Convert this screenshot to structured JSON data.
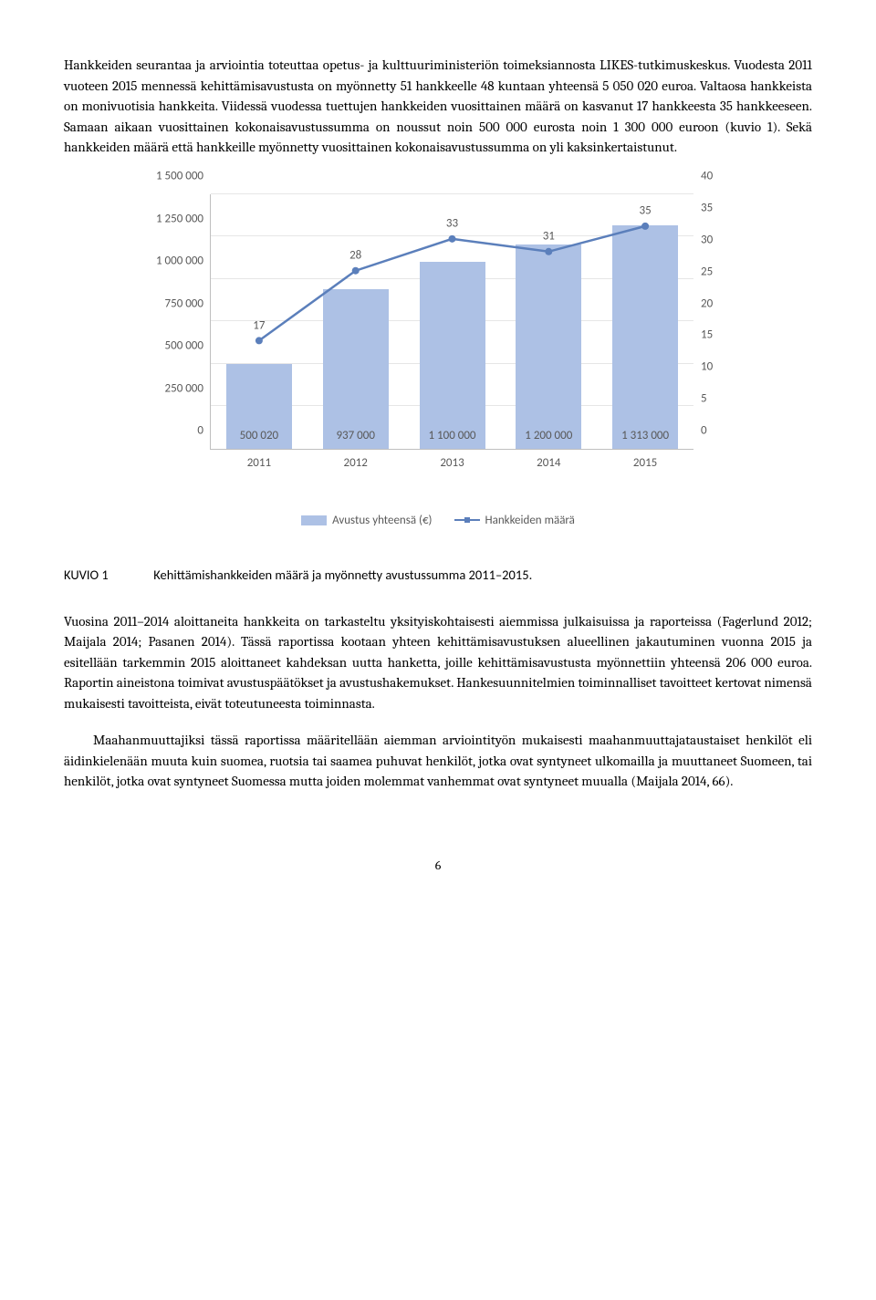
{
  "para1": "Hankkeiden seurantaa ja arviointia toteuttaa opetus- ja kulttuuriministeriön toimeksiannosta LIKES-tutkimuskeskus. Vuodesta 2011 vuoteen 2015 mennessä kehittämisavustusta on myönnetty 51 hankkeelle 48 kuntaan yhteensä 5 050 020 euroa. Valtaosa hankkeista on monivuotisia hankkeita. Viidessä vuodessa tuettujen hankkeiden vuosittainen määrä on kasvanut 17 hankkeesta 35 hankkeeseen. Samaan aikaan vuosittainen kokonaisavustussumma on noussut noin 500 000 eurosta noin 1 300 000 euroon (kuvio 1). Sekä hankkeiden määrä että hankkeille myönnetty vuosittainen kokonaisavustussumma on yli kaksinkertaistunut.",
  "caption_label": "KUVIO 1",
  "caption_text": "Kehittämishankkeiden määrä ja myönnetty avustussumma 2011–2015.",
  "para2": "Vuosina 2011–2014 aloittaneita hankkeita on tarkasteltu yksityiskohtaisesti aiemmissa julkaisuissa ja raporteissa (Fagerlund 2012; Maijala 2014; Pasanen 2014). Tässä raportissa kootaan yhteen kehittämisavustuksen alueellinen jakautuminen vuonna 2015 ja esitellään tarkemmin 2015 aloittaneet kahdeksan uutta hanketta, joille kehittämisavustusta myönnettiin yhteensä 206 000 euroa. Raportin aineistona toimivat avustuspäätökset ja avustushakemukset. Hankesuunnitelmien toiminnalliset tavoitteet kertovat nimensä mukaisesti tavoitteista, eivät toteutuneesta toiminnasta.",
  "para3": "Maahanmuuttajiksi tässä raportissa määritellään aiemman arviointityön mukaisesti maahanmuuttajataustaiset henkilöt eli äidinkielenään muuta kuin suomea, ruotsia tai saamea puhuvat henkilöt, jotka ovat syntyneet ulkomailla ja muuttaneet Suomeen, tai henkilöt, jotka ovat syntyneet Suomessa mutta joiden molemmat vanhemmat ovat syntyneet muualla (Maijala 2014, 66).",
  "pagenum": "6",
  "chart": {
    "type": "bar+line",
    "categories": [
      "2011",
      "2012",
      "2013",
      "2014",
      "2015"
    ],
    "bar_values": [
      500020,
      937000,
      1100000,
      1200000,
      1313000
    ],
    "bar_labels": [
      "500 020",
      "937 000",
      "1 100 000",
      "1 200 000",
      "1 313 000"
    ],
    "line_values": [
      17,
      28,
      33,
      31,
      35
    ],
    "y1_ticks": [
      0,
      250000,
      500000,
      750000,
      1000000,
      1250000,
      1500000
    ],
    "y1_tick_labels": [
      "0",
      "250 000",
      "500 000",
      "750 000",
      "1 000 000",
      "1 250 000",
      "1 500 000"
    ],
    "y1_max": 1500000,
    "y2_ticks": [
      0,
      5,
      10,
      15,
      20,
      25,
      30,
      35,
      40
    ],
    "y2_max": 40,
    "bar_color": "#adc1e5",
    "line_color": "#5b7fbb",
    "grid_color": "#e6e6e6",
    "text_color": "#595959",
    "legend_bar": "Avustus yhteensä (€)",
    "legend_line": "Hankkeiden määrä"
  }
}
